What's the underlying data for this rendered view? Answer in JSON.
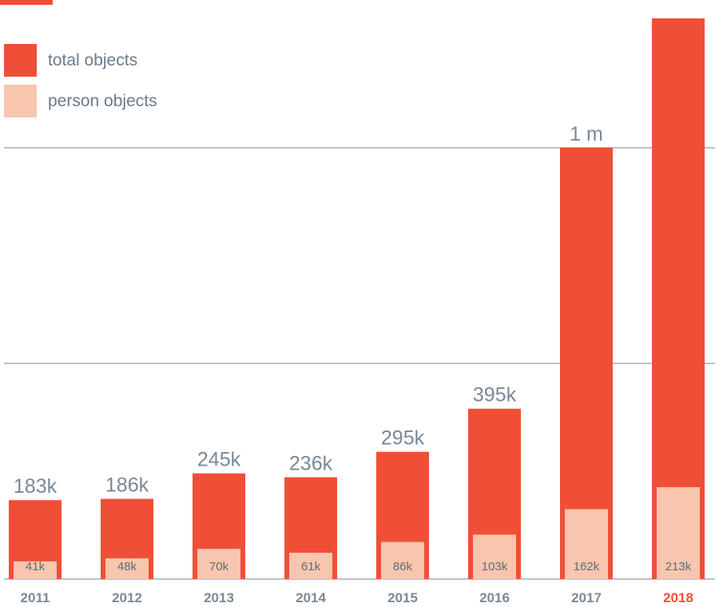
{
  "colors": {
    "total": "#ef4f37",
    "person": "#f8c6ae",
    "grid": "#b6c4cc",
    "year": "#7d8a96",
    "highlight": "#ef4f37"
  },
  "legend": {
    "total_label": "total objects",
    "person_label": "person objects"
  },
  "chart_data": {
    "type": "bar",
    "categories": [
      "2011",
      "2012",
      "2013",
      "2014",
      "2015",
      "2016",
      "2017",
      "2018"
    ],
    "series": [
      {
        "name": "total objects",
        "values": [
          183000,
          186000,
          245000,
          236000,
          295000,
          395000,
          1000000,
          1300000
        ],
        "labels": [
          "183k",
          "186k",
          "245k",
          "236k",
          "295k",
          "395k",
          "1 m",
          ""
        ]
      },
      {
        "name": "person objects",
        "values": [
          41000,
          48000,
          70000,
          61000,
          86000,
          103000,
          162000,
          213000
        ],
        "labels": [
          "41k",
          "48k",
          "70k",
          "61k",
          "86k",
          "103k",
          "162k",
          "213k"
        ]
      }
    ],
    "highlight_category": "2018",
    "gridlines": [
      0,
      500000,
      1000000
    ],
    "grid": true,
    "legend": "top-left",
    "xlabel": "",
    "ylabel": ""
  }
}
